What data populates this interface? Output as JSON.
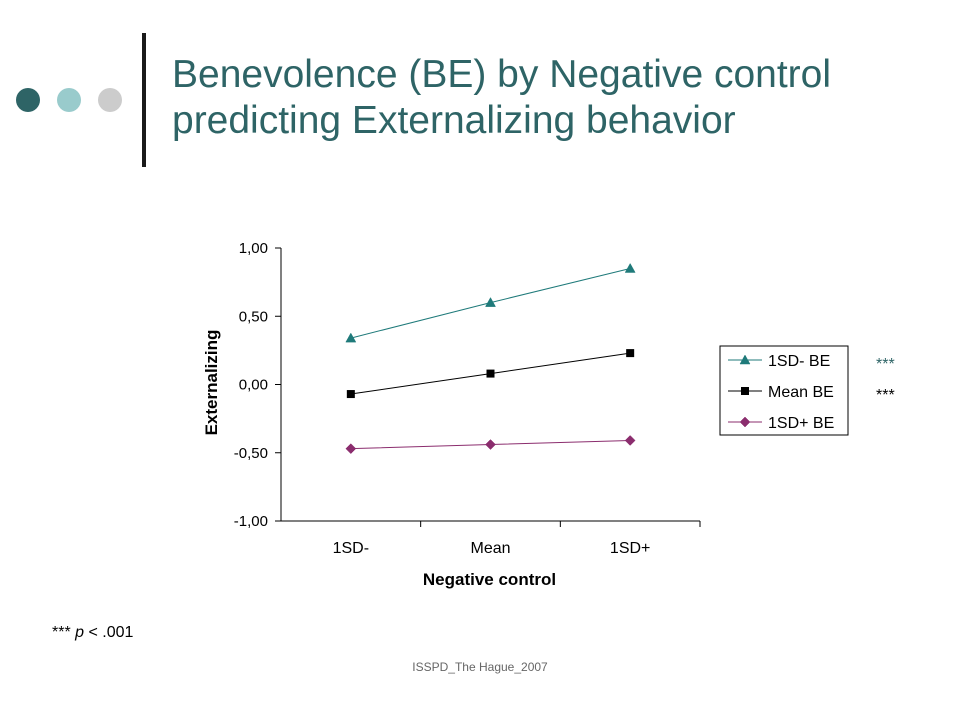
{
  "slide": {
    "title_line1": "Benevolence (BE) by Negative control",
    "title_line2": "predicting Externalizing behavior",
    "footnote_stars": "***",
    "footnote_p": "p",
    "footnote_rest": "< .001",
    "footer": "ISSPD_The Hague_2007",
    "decor_colors": [
      "#2e6466",
      "#99cbcc",
      "#cccccc"
    ],
    "title_color": "#2e6466"
  },
  "chart_data": {
    "type": "line",
    "categories": [
      "1SD-",
      "Mean",
      "1SD+"
    ],
    "xlabel": "Negative control",
    "ylabel": "Externalizing",
    "ylim": [
      -1.0,
      1.0
    ],
    "yticks": [
      1.0,
      0.5,
      0.0,
      -0.5,
      -1.0
    ],
    "ytick_labels": [
      "1,00",
      "0,50",
      "0,00",
      "-0,50",
      "-1,00"
    ],
    "grid": false,
    "legend_position": "right",
    "series": [
      {
        "name": "1SD- BE",
        "values": [
          0.34,
          0.6,
          0.85
        ],
        "color": "#1f7a7a",
        "marker": "triangle",
        "significance": "***",
        "significance_color": "#2e6466"
      },
      {
        "name": "Mean BE",
        "values": [
          -0.07,
          0.08,
          0.23
        ],
        "color": "#000000",
        "marker": "square",
        "significance": "***",
        "significance_color": "#000000"
      },
      {
        "name": "1SD+ BE",
        "values": [
          -0.47,
          -0.44,
          -0.41
        ],
        "color": "#8b2d6e",
        "marker": "diamond",
        "significance": "",
        "significance_color": "#000000"
      }
    ]
  }
}
